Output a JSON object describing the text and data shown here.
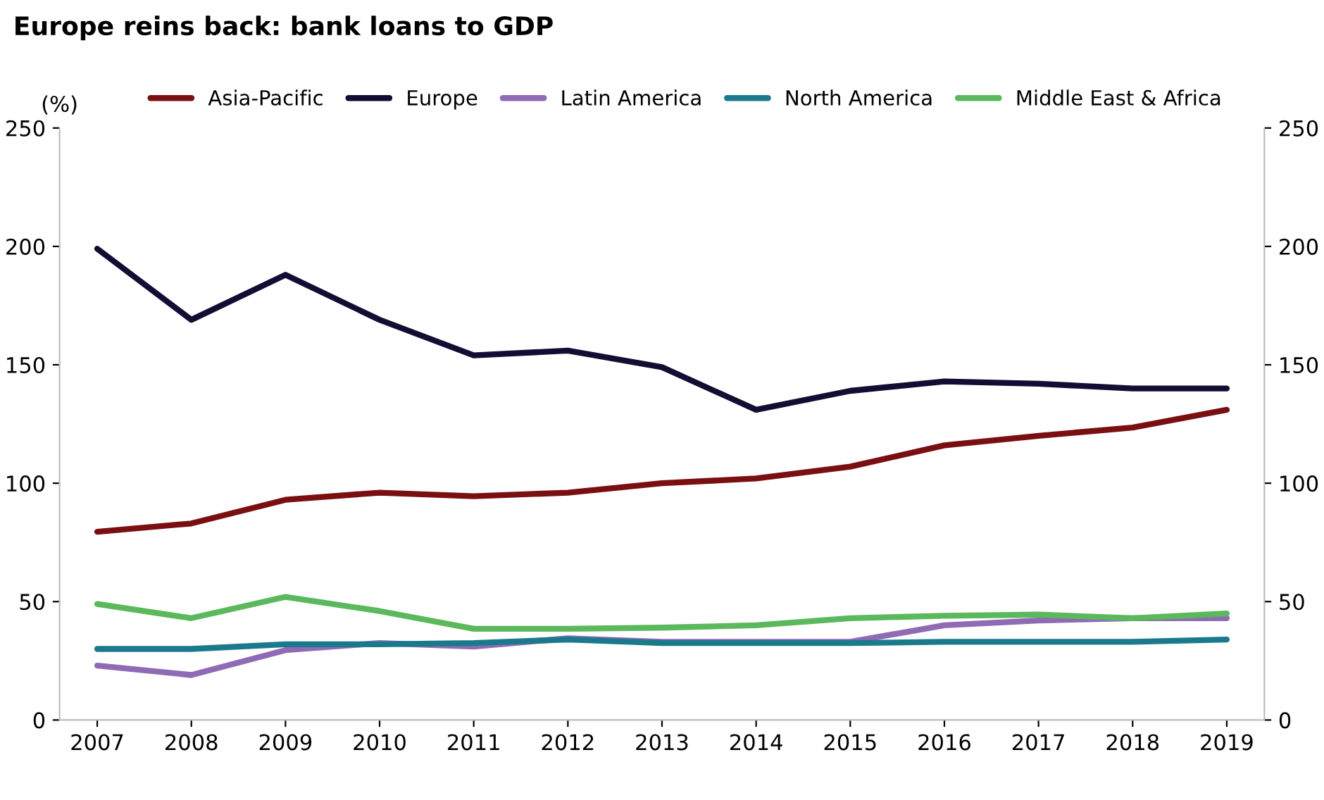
{
  "chart_data": {
    "type": "line",
    "title": "Europe reins back: bank loans to GDP",
    "ylabel": "(%)",
    "x": [
      2007,
      2008,
      2009,
      2010,
      2011,
      2012,
      2013,
      2014,
      2015,
      2016,
      2017,
      2018,
      2019
    ],
    "series": [
      {
        "name": "Asia-Pacific",
        "color": "#7a0f12",
        "values": [
          79.5,
          83,
          93,
          96,
          94.5,
          96,
          100,
          102,
          107,
          116,
          120,
          123.5,
          131
        ]
      },
      {
        "name": "Europe",
        "color": "#140d33",
        "values": [
          199,
          169,
          188,
          169,
          154,
          156,
          149,
          131,
          139,
          143,
          142,
          140,
          140
        ]
      },
      {
        "name": "Latin America",
        "color": "#8f6bb5",
        "values": [
          23,
          19,
          29.5,
          32.5,
          31,
          34.5,
          33,
          33,
          33,
          40,
          42,
          43,
          43
        ]
      },
      {
        "name": "North America",
        "color": "#1a7a8c",
        "values": [
          30,
          30,
          32,
          32,
          32.5,
          34,
          32.5,
          32.5,
          32.5,
          33,
          33,
          33,
          34
        ]
      },
      {
        "name": "Middle East & Africa",
        "color": "#5cb85c",
        "values": [
          49,
          43,
          52,
          46,
          38.5,
          38.5,
          39,
          40,
          43,
          44,
          44.5,
          43,
          45
        ]
      }
    ],
    "xlim": [
      2006.6,
      2019.4
    ],
    "xticks": [
      2007,
      2008,
      2009,
      2010,
      2011,
      2012,
      2013,
      2014,
      2015,
      2016,
      2017,
      2018,
      2019
    ],
    "ylim": [
      0,
      250
    ],
    "yticks": [
      0,
      50,
      100,
      150,
      200,
      250
    ],
    "y2lim": [
      0,
      250
    ],
    "y2ticks": [
      0,
      50,
      100,
      150,
      200,
      250
    ],
    "legend": "top",
    "grid": false
  }
}
